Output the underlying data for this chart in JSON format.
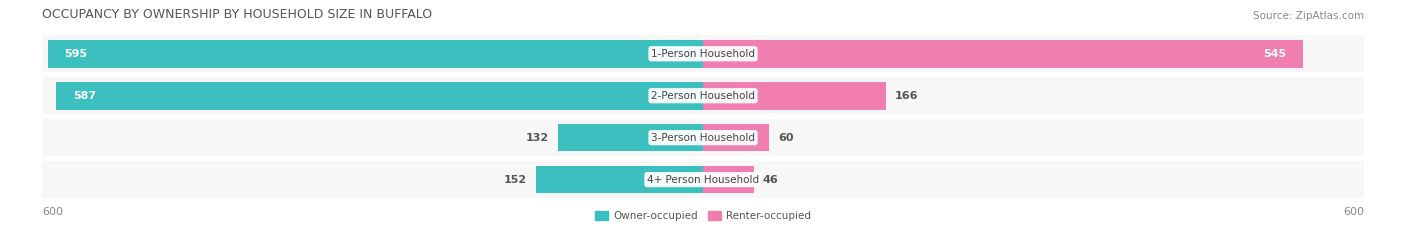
{
  "title": "OCCUPANCY BY OWNERSHIP BY HOUSEHOLD SIZE IN BUFFALO",
  "source": "Source: ZipAtlas.com",
  "categories": [
    "1-Person Household",
    "2-Person Household",
    "3-Person Household",
    "4+ Person Household"
  ],
  "owner_values": [
    595,
    587,
    132,
    152
  ],
  "renter_values": [
    545,
    166,
    60,
    46
  ],
  "max_scale": 600,
  "owner_color": "#3BBFBF",
  "owner_color_light": "#7ED8D8",
  "renter_color": "#F07EB0",
  "renter_color_light": "#F9B8D4",
  "bar_bg_color": "#EFEFEF",
  "row_bg_color": "#F7F7F7",
  "title_fontsize": 9,
  "source_fontsize": 7.5,
  "label_fontsize": 7.5,
  "value_fontsize": 8,
  "tick_fontsize": 8
}
